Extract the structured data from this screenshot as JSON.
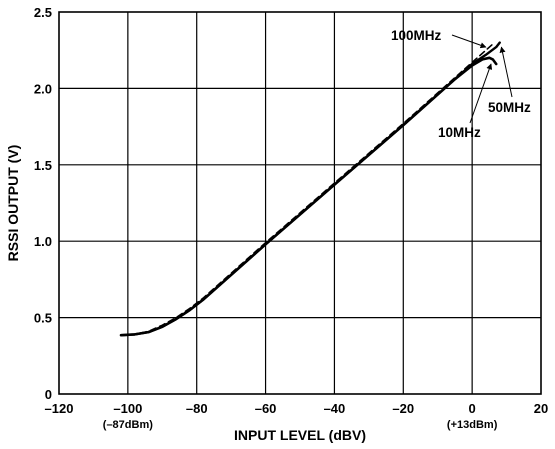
{
  "chart_data": {
    "type": "line",
    "xlabel": "INPUT LEVEL (dBV)",
    "ylabel": "RSSI OUTPUT (V)",
    "xlim": [
      -120,
      20
    ],
    "ylim": [
      0,
      2.5
    ],
    "x_ticks": [
      "–120",
      "–100",
      "–80",
      "–60",
      "–40",
      "–20",
      "0",
      "20"
    ],
    "y_ticks": [
      "0",
      "0.5",
      "1.0",
      "1.5",
      "2.0",
      "2.5"
    ],
    "x_sub_labels": [
      {
        "x": -100,
        "text": "(–87dBm)"
      },
      {
        "x": 0,
        "text": "(+13dBm)"
      }
    ],
    "grid": true,
    "series": [
      {
        "name": "10MHz",
        "x": [
          -102,
          -98,
          -94,
          -90,
          -86,
          -82,
          -78,
          -60,
          -40,
          -20,
          -5,
          0,
          3,
          5,
          6,
          7
        ],
        "y": [
          0.385,
          0.39,
          0.405,
          0.44,
          0.49,
          0.55,
          0.62,
          0.98,
          1.37,
          1.76,
          2.06,
          2.15,
          2.19,
          2.2,
          2.19,
          2.16
        ]
      },
      {
        "name": "50MHz",
        "x": [
          -102,
          -98,
          -94,
          -90,
          -86,
          -82,
          -78,
          -60,
          -40,
          -20,
          -5,
          0,
          4,
          7,
          8
        ],
        "y": [
          0.385,
          0.39,
          0.405,
          0.44,
          0.49,
          0.55,
          0.62,
          0.98,
          1.37,
          1.76,
          2.06,
          2.16,
          2.22,
          2.27,
          2.3
        ]
      },
      {
        "name": "100MHz",
        "x": [
          -102,
          -98,
          -94,
          -90,
          -86,
          -82,
          -78,
          -60,
          -40,
          -20,
          -5,
          0,
          4,
          6
        ],
        "y": [
          0.385,
          0.392,
          0.41,
          0.45,
          0.5,
          0.56,
          0.63,
          0.99,
          1.38,
          1.77,
          2.07,
          2.17,
          2.25,
          2.29
        ]
      }
    ],
    "annotations": [
      "100MHz",
      "50MHz",
      "10MHz"
    ]
  }
}
